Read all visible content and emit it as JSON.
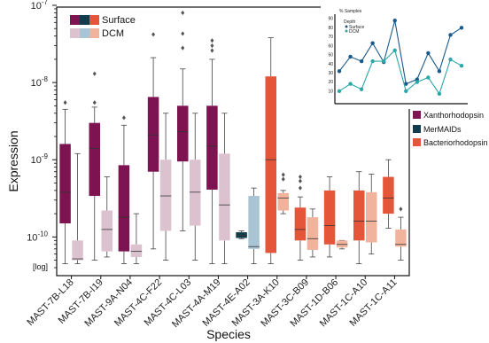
{
  "chart_data": {
    "type": "box",
    "xlabel": "Species",
    "ylabel": "Expression",
    "yscale": "log",
    "scale_note": "[log]",
    "ylim": [
      4e-11,
      1e-07
    ],
    "y_ticks": [
      {
        "value": 1e-10,
        "mant": "10",
        "exp": "-10"
      },
      {
        "value": 1e-09,
        "mant": "10",
        "exp": "-9"
      },
      {
        "value": 1e-08,
        "mant": "10",
        "exp": "-8"
      },
      {
        "value": 1e-07,
        "mant": "10",
        "exp": "-7"
      }
    ],
    "categories": [
      "MAST-7B-L18",
      "MAST-7B-I19",
      "MAST-9A-N04",
      "MAST-4C-F22",
      "MAST-4C-L03",
      "MAST-4A-M19",
      "MAST-4E-A02",
      "MAST-3A-K10",
      "MAST-3C-B09",
      "MAST-1D-B06",
      "MAST-1C-A10",
      "MAST-1C-A11"
    ],
    "groups": [
      {
        "name": "Xanthorhodopsin",
        "surface_color": "#7d1451",
        "dcm_color": "#dcc2cf",
        "cats": [
          0,
          1,
          2,
          3,
          4,
          5
        ]
      },
      {
        "name": "MerMAIDs",
        "surface_color": "#113c4c",
        "dcm_color": "#a9c5d4",
        "cats": [
          6
        ]
      },
      {
        "name": "Bacteriorhodopsin",
        "surface_color": "#e5553a",
        "dcm_color": "#f2b39c",
        "cats": [
          7,
          8,
          9,
          10,
          11
        ]
      }
    ],
    "legend_depth": [
      "Surface",
      "DCM"
    ],
    "legend_groups": [
      "Xanthorhodopsin",
      "MerMAIDs",
      "Bacteriorhodopsin"
    ],
    "boxes": [
      {
        "cat": 0,
        "depth": "Surface",
        "whislo": 4.5e-11,
        "q1": 1.5e-10,
        "med": 3.8e-10,
        "q3": 1.6e-09,
        "whishi": 4.5e-09,
        "fliers": [
          5.5e-09
        ]
      },
      {
        "cat": 0,
        "depth": "DCM",
        "whislo": 4.5e-11,
        "q1": 5e-11,
        "med": 5.2e-11,
        "q3": 9e-11,
        "whishi": 1.2e-09,
        "fliers": []
      },
      {
        "cat": 1,
        "depth": "Surface",
        "whislo": 5e-11,
        "q1": 3.4e-10,
        "med": 1.4e-09,
        "q3": 3e-09,
        "whishi": 4.8e-09,
        "fliers": [
          5.5e-09,
          1.3e-08
        ]
      },
      {
        "cat": 1,
        "depth": "DCM",
        "whislo": 5.5e-11,
        "q1": 6.5e-11,
        "med": 1.25e-10,
        "q3": 2.2e-10,
        "whishi": 6e-10,
        "fliers": []
      },
      {
        "cat": 2,
        "depth": "Surface",
        "whislo": 4.5e-11,
        "q1": 6.5e-11,
        "med": 1.8e-10,
        "q3": 8.5e-10,
        "whishi": 2.8e-09,
        "fliers": [
          3.5e-09
        ]
      },
      {
        "cat": 2,
        "depth": "DCM",
        "whislo": 4.5e-11,
        "q1": 5.5e-11,
        "med": 6.5e-11,
        "q3": 8e-11,
        "whishi": 2e-10,
        "fliers": []
      },
      {
        "cat": 3,
        "depth": "Surface",
        "whislo": 7e-11,
        "q1": 7e-10,
        "med": 2.1e-09,
        "q3": 6.5e-09,
        "whishi": 2.1e-08,
        "fliers": [
          4.2e-08
        ]
      },
      {
        "cat": 3,
        "depth": "DCM",
        "whislo": 5e-11,
        "q1": 1.2e-10,
        "med": 3.4e-10,
        "q3": 1e-09,
        "whishi": 4e-09,
        "fliers": []
      },
      {
        "cat": 4,
        "depth": "Surface",
        "whislo": 1.2e-10,
        "q1": 9.5e-10,
        "med": 2.3e-09,
        "q3": 5e-09,
        "whishi": 1.5e-08,
        "fliers": [
          2.8e-08,
          4.3e-08,
          8e-08
        ]
      },
      {
        "cat": 4,
        "depth": "DCM",
        "whislo": 5e-11,
        "q1": 1.4e-10,
        "med": 3.8e-10,
        "q3": 1e-09,
        "whishi": 4e-09,
        "fliers": []
      },
      {
        "cat": 5,
        "depth": "Surface",
        "whislo": 4.5e-11,
        "q1": 4.1e-10,
        "med": 1.5e-09,
        "q3": 5e-09,
        "whishi": 2e-08,
        "fliers": [
          2.6e-08,
          3e-08,
          3.5e-08
        ]
      },
      {
        "cat": 5,
        "depth": "DCM",
        "whislo": 4.5e-11,
        "q1": 9e-11,
        "med": 2.6e-10,
        "q3": 1.2e-09,
        "whishi": 4e-09,
        "fliers": []
      },
      {
        "cat": 6,
        "depth": "Surface",
        "whislo": 9.5e-11,
        "q1": 9.7e-11,
        "med": 1.05e-10,
        "q3": 1.15e-10,
        "whishi": 1.2e-10,
        "fliers": []
      },
      {
        "cat": 6,
        "depth": "DCM",
        "whislo": 4.5e-11,
        "q1": 7e-11,
        "med": 7.5e-11,
        "q3": 3.4e-10,
        "whishi": 4.3e-10,
        "fliers": []
      },
      {
        "cat": 7,
        "depth": "Surface",
        "whislo": 4.5e-11,
        "q1": 6.2e-11,
        "med": 1e-09,
        "q3": 1.2e-08,
        "whishi": 3.8e-08,
        "fliers": []
      },
      {
        "cat": 7,
        "depth": "DCM",
        "whislo": 2e-10,
        "q1": 2.2e-10,
        "med": 3.2e-10,
        "q3": 3.7e-10,
        "whishi": 4e-10,
        "fliers": [
          5.6e-10,
          6.4e-10
        ]
      },
      {
        "cat": 8,
        "depth": "Surface",
        "whislo": 5e-11,
        "q1": 9e-11,
        "med": 1.25e-10,
        "q3": 2.4e-10,
        "whishi": 3.3e-10,
        "fliers": [
          4.3e-10,
          5.3e-10,
          6e-10
        ]
      },
      {
        "cat": 8,
        "depth": "DCM",
        "whislo": 5.5e-11,
        "q1": 6.8e-11,
        "med": 9.5e-11,
        "q3": 1.8e-10,
        "whishi": 2.3e-10,
        "fliers": []
      },
      {
        "cat": 9,
        "depth": "Surface",
        "whislo": 5.5e-11,
        "q1": 8e-11,
        "med": 1.4e-10,
        "q3": 4e-10,
        "whishi": 6e-10,
        "fliers": []
      },
      {
        "cat": 9,
        "depth": "DCM",
        "whislo": 7e-11,
        "q1": 7.3e-11,
        "med": 8e-11,
        "q3": 9e-11,
        "whishi": 9e-11,
        "fliers": []
      },
      {
        "cat": 10,
        "depth": "Surface",
        "whislo": 4.5e-11,
        "q1": 9e-11,
        "med": 1.6e-10,
        "q3": 4e-10,
        "whishi": 7e-10,
        "fliers": []
      },
      {
        "cat": 10,
        "depth": "DCM",
        "whislo": 6e-11,
        "q1": 8.5e-11,
        "med": 1.6e-10,
        "q3": 3.8e-10,
        "whishi": 6.5e-10,
        "fliers": []
      },
      {
        "cat": 11,
        "depth": "Surface",
        "whislo": 1.3e-10,
        "q1": 2e-10,
        "med": 3.2e-10,
        "q3": 6e-10,
        "whishi": 1e-09,
        "fliers": []
      },
      {
        "cat": 11,
        "depth": "DCM",
        "whislo": 5e-11,
        "q1": 7.5e-11,
        "med": 8e-11,
        "q3": 1.25e-10,
        "whishi": 1.8e-10,
        "fliers": [
          2.3e-10
        ]
      }
    ],
    "inset": {
      "type": "line",
      "title": "% Samples",
      "legend_title": "Depth",
      "series": [
        {
          "name": "Surface",
          "color": "#1a5a8a",
          "values": [
            32,
            48,
            43,
            63,
            42,
            88,
            18,
            23,
            52,
            32,
            72,
            80
          ]
        },
        {
          "name": "DCM",
          "color": "#2aa8a8",
          "values": [
            10,
            18,
            12,
            43,
            43,
            55,
            10,
            20,
            25,
            7,
            45,
            38
          ]
        }
      ],
      "y_ticks": [
        10,
        20,
        30,
        40,
        50,
        60,
        70,
        80,
        90
      ],
      "ylim": [
        0,
        95
      ]
    }
  }
}
